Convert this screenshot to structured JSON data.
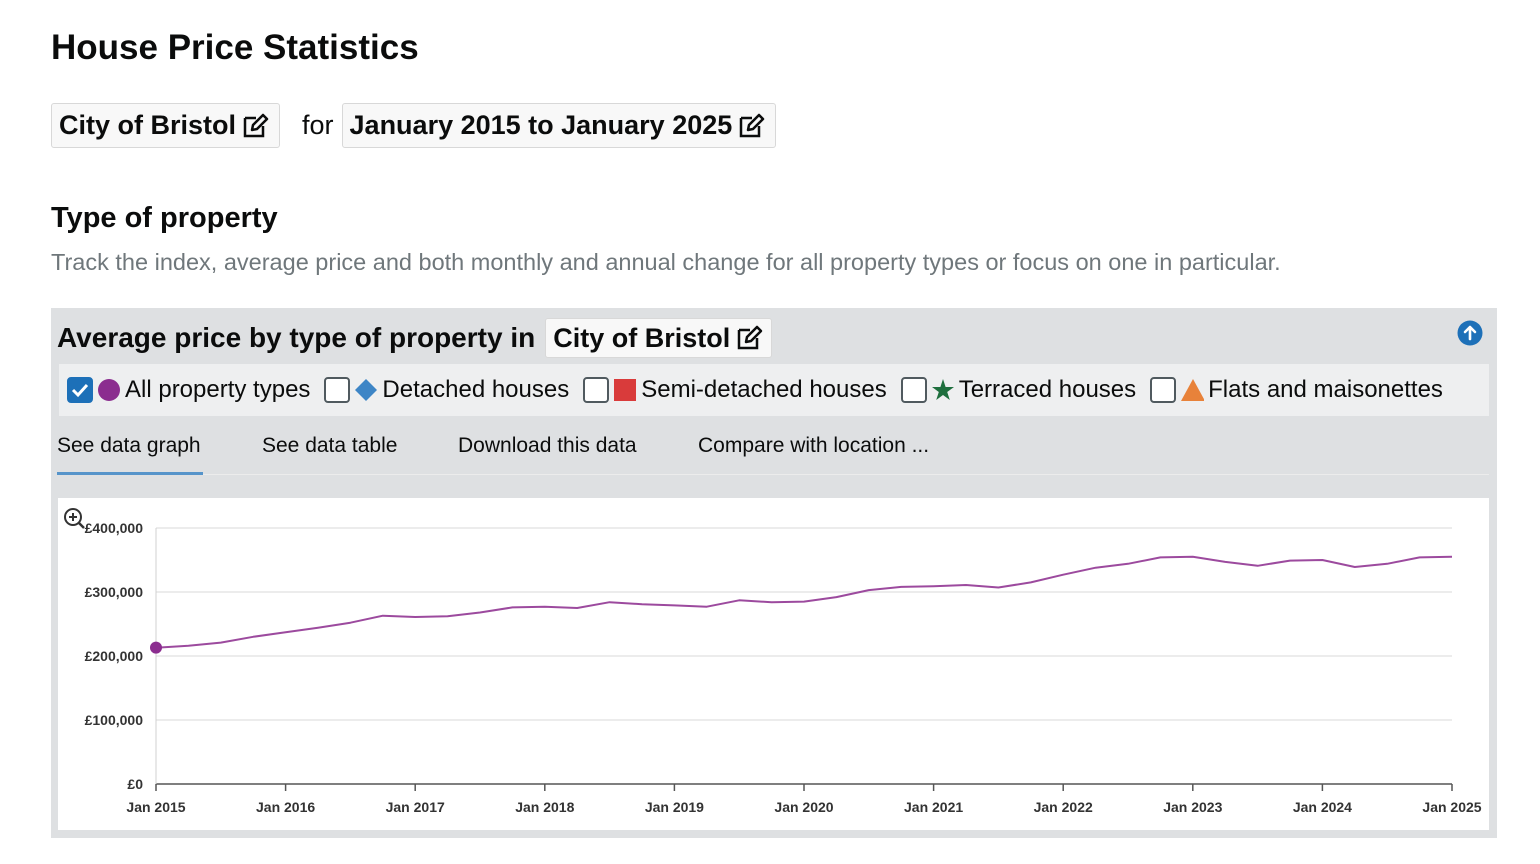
{
  "page": {
    "title": "House Price Statistics"
  },
  "selectors": {
    "location": "City of Bristol",
    "connector": "for",
    "period": "January 2015 to January 2025",
    "edit_icon": "edit-icon"
  },
  "section": {
    "heading": "Type of property",
    "description": "Track the index, average price and both monthly and annual change for all property types or focus on one in particular."
  },
  "panel": {
    "title": "Average price by type of property in",
    "location": "City of Bristol",
    "collapse_icon": "arrow-up-circle-icon",
    "legend": [
      {
        "label": "All property types",
        "checked": true,
        "marker": "circle",
        "color": "#8b2d8f"
      },
      {
        "label": "Detached houses",
        "checked": false,
        "marker": "diamond",
        "color": "#3d85c6"
      },
      {
        "label": "Semi-detached houses",
        "checked": false,
        "marker": "square",
        "color": "#d93b3b"
      },
      {
        "label": "Terraced houses",
        "checked": false,
        "marker": "star",
        "color": "#1e6f3e"
      },
      {
        "label": "Flats and maisonettes",
        "checked": false,
        "marker": "triangle",
        "color": "#e8823a"
      }
    ],
    "tabs": [
      {
        "label": "See data graph",
        "active": true
      },
      {
        "label": "See data table",
        "active": false
      },
      {
        "label": "Download this data",
        "active": false
      },
      {
        "label": "Compare with location ...",
        "active": false
      }
    ],
    "zoom_icon": "zoom-in-icon"
  },
  "chart_data": {
    "type": "line",
    "title": "",
    "xlabel": "",
    "ylabel": "",
    "ylim": [
      0,
      400000
    ],
    "xlim": [
      "Jan 2015",
      "Jan 2025"
    ],
    "y_ticks": [
      "£0",
      "£100,000",
      "£200,000",
      "£300,000",
      "£400,000"
    ],
    "x_ticks": [
      "Jan 2015",
      "Jan 2016",
      "Jan 2017",
      "Jan 2018",
      "Jan 2019",
      "Jan 2020",
      "Jan 2021",
      "Jan 2022",
      "Jan 2023",
      "Jan 2024",
      "Jan 2025"
    ],
    "grid": true,
    "series": [
      {
        "name": "All property types",
        "color": "#9c4a9e",
        "x": [
          "2015-01",
          "2015-04",
          "2015-07",
          "2015-10",
          "2016-01",
          "2016-04",
          "2016-07",
          "2016-10",
          "2017-01",
          "2017-04",
          "2017-07",
          "2017-10",
          "2018-01",
          "2018-04",
          "2018-07",
          "2018-10",
          "2019-01",
          "2019-04",
          "2019-07",
          "2019-10",
          "2020-01",
          "2020-04",
          "2020-07",
          "2020-10",
          "2021-01",
          "2021-04",
          "2021-07",
          "2021-10",
          "2022-01",
          "2022-04",
          "2022-07",
          "2022-10",
          "2023-01",
          "2023-04",
          "2023-07",
          "2023-10",
          "2024-01",
          "2024-04",
          "2024-07",
          "2024-10",
          "2025-01"
        ],
        "y": [
          213000,
          216000,
          221000,
          230000,
          237000,
          244000,
          252000,
          263000,
          261000,
          262000,
          268000,
          276000,
          277000,
          275000,
          284000,
          281000,
          279000,
          277000,
          287000,
          284000,
          285000,
          292000,
          303000,
          308000,
          309000,
          311000,
          307000,
          315000,
          327000,
          338000,
          344000,
          354000,
          355000,
          347000,
          341000,
          349000,
          350000,
          339000,
          344000,
          354000,
          355000
        ]
      }
    ]
  }
}
